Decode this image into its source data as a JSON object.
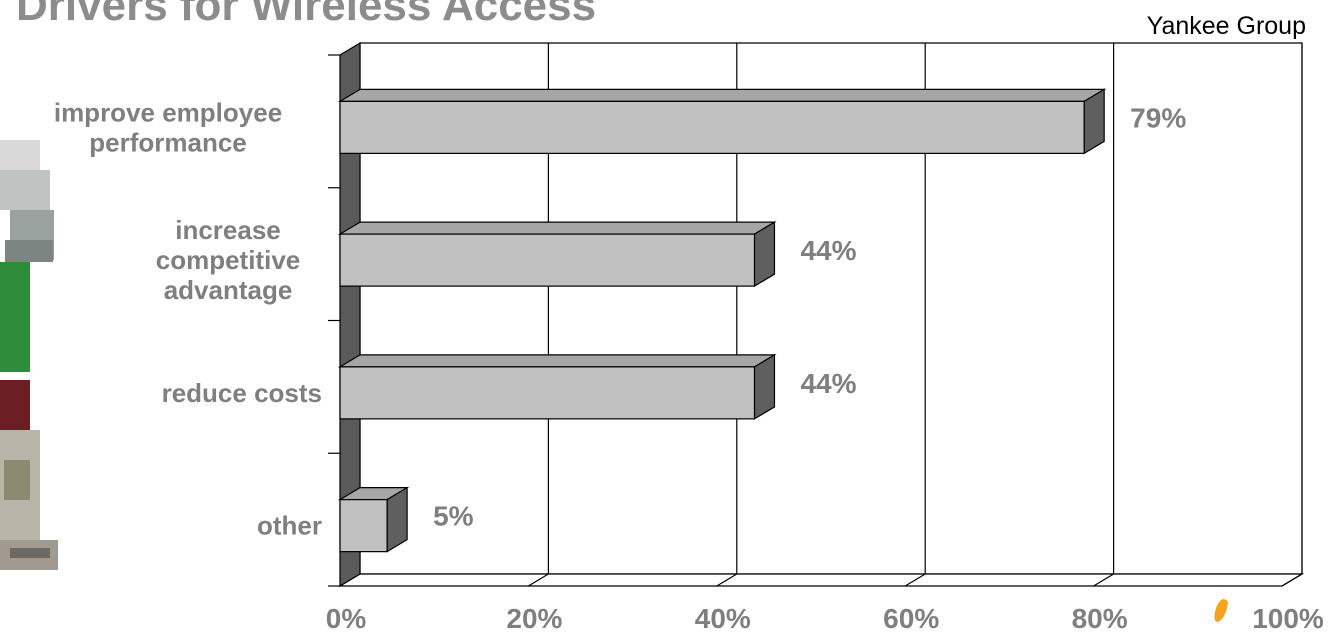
{
  "title": "Drivers for Wireless Access",
  "source": "Yankee Group",
  "colors": {
    "bar_front": "#c0c0c0",
    "bar_top": "#a6a6a6",
    "bar_side": "#5f5f5f",
    "wall": "#5a5a5a",
    "label": "#7f7f7f"
  },
  "chart_data": {
    "type": "bar",
    "orientation": "horizontal",
    "style": "3d",
    "categories": [
      [
        "improve employee",
        "performance"
      ],
      [
        "increase",
        "competitive",
        "advantage"
      ],
      [
        "reduce costs"
      ],
      [
        "other"
      ]
    ],
    "values": [
      79,
      44,
      44,
      5
    ],
    "value_labels": [
      "79%",
      "44%",
      "44%",
      "5%"
    ],
    "xlim": [
      0,
      100
    ],
    "xticks": [
      0,
      20,
      40,
      60,
      80,
      100
    ],
    "xtick_labels": [
      "0%",
      "20%",
      "40%",
      "60%",
      "80%",
      "100%"
    ],
    "grid": true
  }
}
